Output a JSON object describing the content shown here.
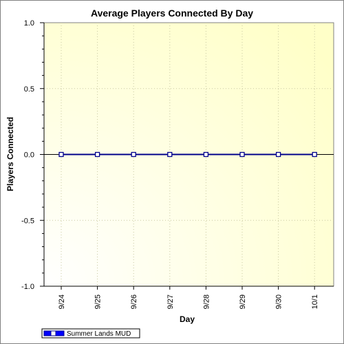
{
  "chart_data": {
    "type": "line",
    "title": "Average Players Connected By Day",
    "xlabel": "Day",
    "ylabel": "Players Connected",
    "categories": [
      "9/24",
      "9/25",
      "9/26",
      "9/27",
      "9/28",
      "9/29",
      "9/30",
      "10/1"
    ],
    "y_ticks": [
      "1.0",
      "0.5",
      "0.0",
      "-0.5",
      "-1.0"
    ],
    "ylim": [
      -1.0,
      1.0
    ],
    "grid": true,
    "legend_position": "bottom-left",
    "series": [
      {
        "name": "Summer Lands MUD",
        "values": [
          0,
          0,
          0,
          0,
          0,
          0,
          0,
          0
        ],
        "color": "#00008b"
      }
    ],
    "colors": {
      "plot_bg_center": "#ffffff",
      "plot_bg_edge": "#ffffd0",
      "grid": "#c8c8a0",
      "series_line": "#00008b",
      "zero_line": "#000000"
    }
  }
}
